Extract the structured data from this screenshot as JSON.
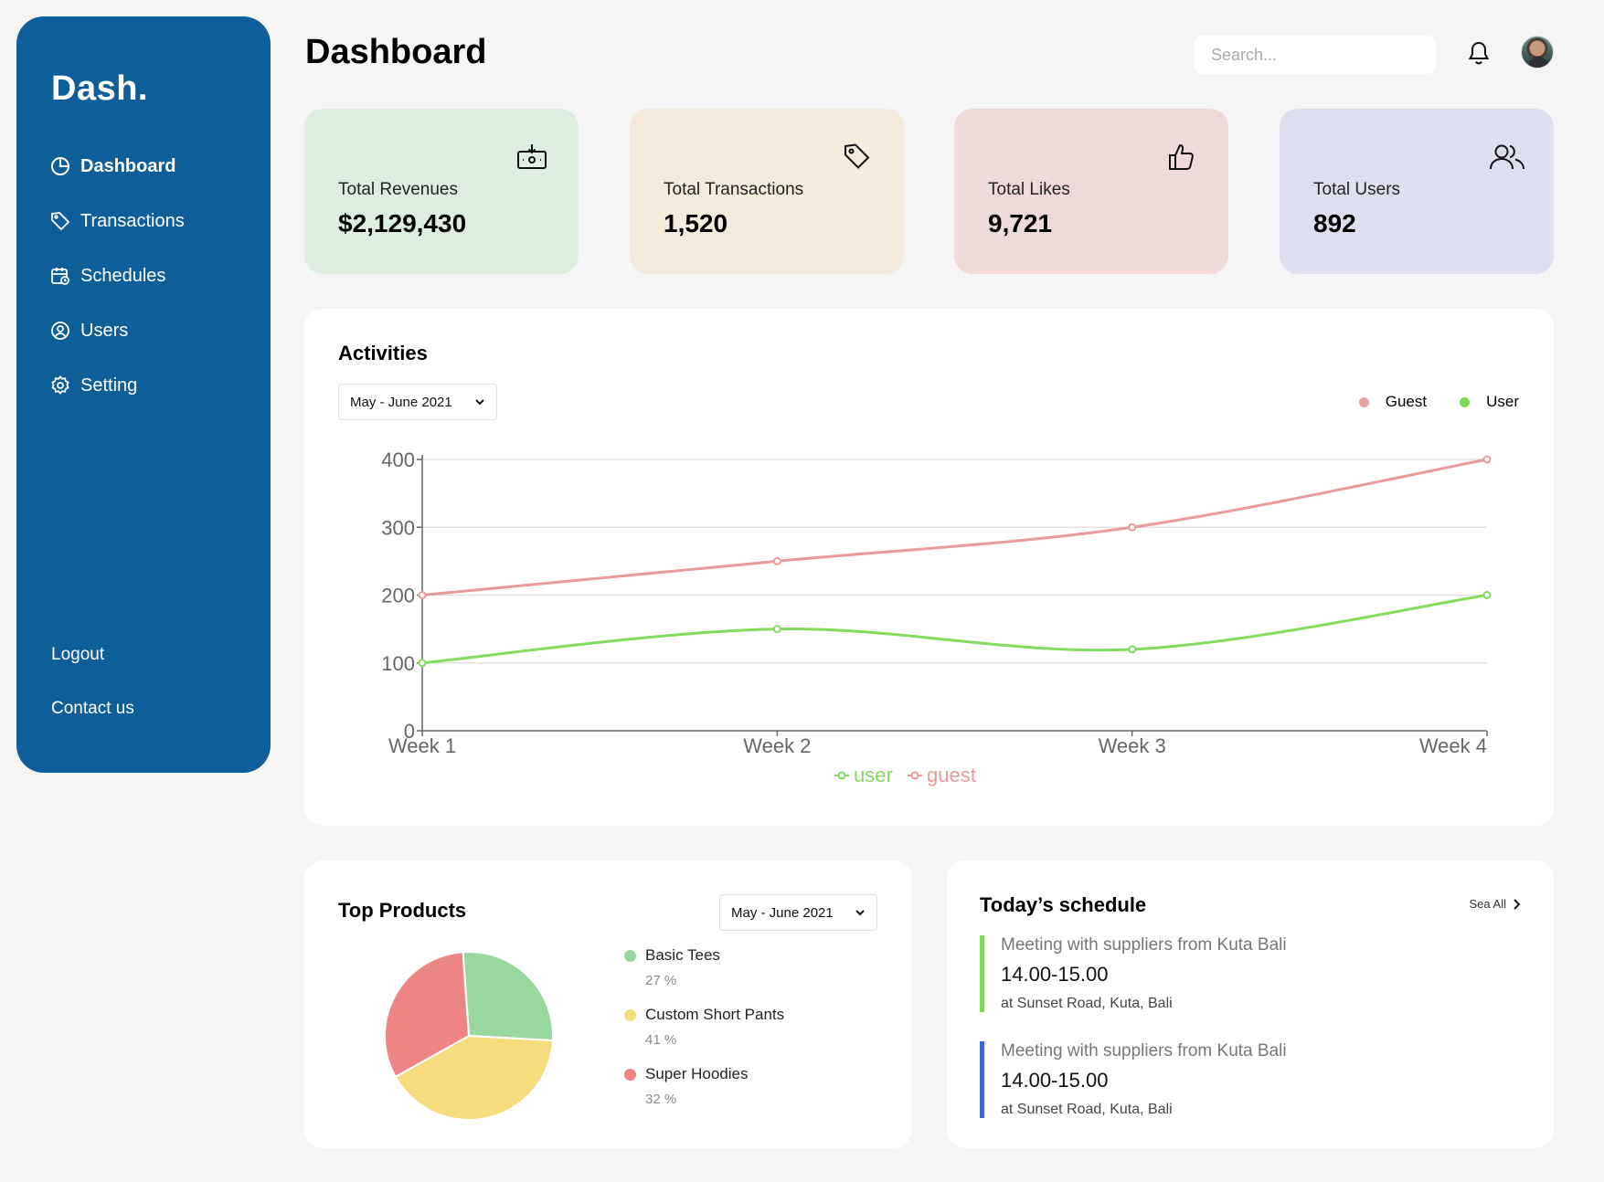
{
  "sidebar": {
    "logo": "Dash.",
    "items": [
      {
        "label": "Dashboard",
        "icon": "pie-chart-icon",
        "active": true
      },
      {
        "label": "Transactions",
        "icon": "tag-icon"
      },
      {
        "label": "Schedules",
        "icon": "calendar-clock-icon"
      },
      {
        "label": "Users",
        "icon": "user-circle-icon"
      },
      {
        "label": "Setting",
        "icon": "gear-icon"
      }
    ],
    "logout": "Logout",
    "contact": "Contact us"
  },
  "header": {
    "title": "Dashboard",
    "search_placeholder": "Search..."
  },
  "cards": [
    {
      "label": "Total Revenues",
      "value": "$2,129,430",
      "icon": "money-icon",
      "color": "#ddeee0"
    },
    {
      "label": "Total Transactions",
      "value": "1,520",
      "icon": "tag-icon",
      "color": "#f4ebdc"
    },
    {
      "label": "Total Likes",
      "value": "9,721",
      "icon": "thumbs-up-icon",
      "color": "#efdada"
    },
    {
      "label": "Total Users",
      "value": "892",
      "icon": "users-icon",
      "color": "#dedfee"
    }
  ],
  "activities": {
    "title": "Activities",
    "period": "May - June 2021",
    "legend": [
      {
        "label": "Guest",
        "color": "#e8a0a0"
      },
      {
        "label": "User",
        "color": "#7ed957"
      }
    ]
  },
  "chart_data": {
    "type": "line",
    "categories": [
      "Week 1",
      "Week 2",
      "Week 3",
      "Week 4"
    ],
    "series": [
      {
        "name": "user",
        "color": "#82dc5e",
        "values": [
          100,
          150,
          120,
          200
        ]
      },
      {
        "name": "guest",
        "color": "#e99a9a",
        "values": [
          200,
          250,
          300,
          400
        ]
      }
    ],
    "yticks": [
      0,
      100,
      200,
      300,
      400
    ],
    "ylim": [
      0,
      400
    ],
    "grid": true,
    "legend_position": "bottom"
  },
  "top_products": {
    "title": "Top Products",
    "period": "May - June 2021",
    "items": [
      {
        "name": "Basic Tees",
        "pct_label": "27 %",
        "value": 27,
        "color": "#98d89e"
      },
      {
        "name": "Custom Short Pants",
        "pct_label": "41 %",
        "value": 41,
        "color": "#f6dc7d"
      },
      {
        "name": "Super Hoodies",
        "pct_label": "32 %",
        "value": 32,
        "color": "#ee8585"
      }
    ]
  },
  "schedule": {
    "title": "Today’s schedule",
    "see_all": "Sea All",
    "items": [
      {
        "title": "Meeting with suppliers from Kuta Bali",
        "time": "14.00-15.00",
        "location": "at Sunset Road, Kuta, Bali",
        "color": "#7ed957"
      },
      {
        "title": "Meeting with suppliers from Kuta Bali",
        "time": "14.00-15.00",
        "location": "at Sunset Road, Kuta, Bali",
        "color": "#3a66d6"
      }
    ]
  }
}
